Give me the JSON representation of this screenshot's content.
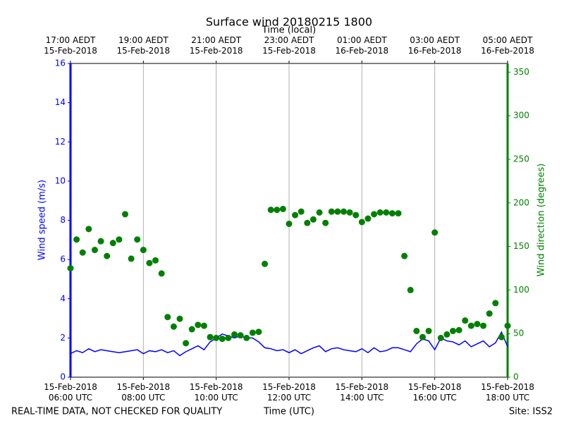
{
  "chart_data": {
    "type": "line",
    "title": "Surface wind 20180215 1800",
    "x2label": "Time (local)",
    "xlabel": "Time (UTC)",
    "ylabel": "Wind speed (m/s)",
    "y2label": "Wind direction (degrees)",
    "footer_left": "REAL-TIME DATA, NOT CHECKED FOR QUALITY",
    "footer_right": "Site: ISS2",
    "grid": "x",
    "x": [
      "2018-02-15T06:00",
      "2018-02-15T06:10",
      "2018-02-15T06:20",
      "2018-02-15T06:30",
      "2018-02-15T06:40",
      "2018-02-15T06:50",
      "2018-02-15T07:00",
      "2018-02-15T07:10",
      "2018-02-15T07:20",
      "2018-02-15T07:30",
      "2018-02-15T07:40",
      "2018-02-15T07:50",
      "2018-02-15T08:00",
      "2018-02-15T08:10",
      "2018-02-15T08:20",
      "2018-02-15T08:30",
      "2018-02-15T08:40",
      "2018-02-15T08:50",
      "2018-02-15T09:00",
      "2018-02-15T09:10",
      "2018-02-15T09:20",
      "2018-02-15T09:30",
      "2018-02-15T09:40",
      "2018-02-15T09:50",
      "2018-02-15T10:00",
      "2018-02-15T10:10",
      "2018-02-15T10:20",
      "2018-02-15T10:30",
      "2018-02-15T10:40",
      "2018-02-15T10:50",
      "2018-02-15T11:00",
      "2018-02-15T11:10",
      "2018-02-15T11:20",
      "2018-02-15T11:30",
      "2018-02-15T11:40",
      "2018-02-15T11:50",
      "2018-02-15T12:00",
      "2018-02-15T12:10",
      "2018-02-15T12:20",
      "2018-02-15T12:30",
      "2018-02-15T12:40",
      "2018-02-15T12:50",
      "2018-02-15T13:00",
      "2018-02-15T13:10",
      "2018-02-15T13:20",
      "2018-02-15T13:30",
      "2018-02-15T13:40",
      "2018-02-15T13:50",
      "2018-02-15T14:00",
      "2018-02-15T14:10",
      "2018-02-15T14:20",
      "2018-02-15T14:30",
      "2018-02-15T14:40",
      "2018-02-15T14:50",
      "2018-02-15T15:00",
      "2018-02-15T15:10",
      "2018-02-15T15:20",
      "2018-02-15T15:30",
      "2018-02-15T15:40",
      "2018-02-15T15:50",
      "2018-02-15T16:00",
      "2018-02-15T16:10",
      "2018-02-15T16:20",
      "2018-02-15T16:30",
      "2018-02-15T16:40",
      "2018-02-15T16:50",
      "2018-02-15T17:00",
      "2018-02-15T17:10",
      "2018-02-15T17:20",
      "2018-02-15T17:30",
      "2018-02-15T17:40",
      "2018-02-15T17:50",
      "2018-02-15T18:00"
    ],
    "series": [
      {
        "type": "line",
        "color": "#0000ff",
        "values": [
          1.2,
          1.35,
          1.25,
          1.45,
          1.3,
          1.4,
          1.35,
          1.3,
          1.25,
          1.3,
          1.35,
          1.4,
          1.2,
          1.35,
          1.3,
          1.4,
          1.25,
          1.35,
          1.1,
          1.3,
          1.45,
          1.6,
          1.4,
          1.8,
          2.0,
          2.2,
          2.1,
          2.0,
          2.1,
          2.0,
          2.0,
          1.8,
          1.5,
          1.45,
          1.35,
          1.4,
          1.25,
          1.4,
          1.2,
          1.35,
          1.5,
          1.6,
          1.3,
          1.45,
          1.5,
          1.4,
          1.35,
          1.3,
          1.45,
          1.25,
          1.5,
          1.3,
          1.35,
          1.5,
          1.5,
          1.4,
          1.3,
          1.7,
          1.95,
          1.85,
          1.4,
          2.0,
          1.85,
          1.8,
          1.65,
          1.85,
          1.55,
          1.7,
          1.85,
          1.55,
          1.75,
          2.3,
          1.55
        ]
      },
      {
        "type": "scatter",
        "axis": "y2",
        "color": "#008000",
        "values": [
          125,
          158,
          143,
          170,
          146,
          156,
          139,
          154,
          158,
          187,
          136,
          158,
          146,
          131,
          134,
          119,
          69,
          58,
          67,
          39,
          55,
          60,
          59,
          46,
          45,
          44,
          45,
          49,
          48,
          45,
          51,
          52,
          130,
          192,
          192,
          193,
          176,
          186,
          190,
          177,
          181,
          189,
          177,
          190,
          190,
          190,
          189,
          186,
          178,
          182,
          187,
          189,
          189,
          188,
          188,
          139,
          100,
          53,
          46,
          53,
          166,
          45,
          49,
          53,
          54,
          65,
          59,
          61,
          59,
          73,
          85,
          46,
          59
        ]
      }
    ],
    "xlim": [
      "2018-02-15T06:00",
      "2018-02-15T18:00"
    ],
    "xticks": [
      {
        "value": "2018-02-15T06:00",
        "label": "15-Feb-2018\n06:00 UTC"
      },
      {
        "value": "2018-02-15T08:00",
        "label": "15-Feb-2018\n08:00 UTC"
      },
      {
        "value": "2018-02-15T10:00",
        "label": "15-Feb-2018\n10:00 UTC"
      },
      {
        "value": "2018-02-15T12:00",
        "label": "15-Feb-2018\n12:00 UTC"
      },
      {
        "value": "2018-02-15T14:00",
        "label": "15-Feb-2018\n14:00 UTC"
      },
      {
        "value": "2018-02-15T16:00",
        "label": "15-Feb-2018\n16:00 UTC"
      },
      {
        "value": "2018-02-15T18:00",
        "label": "15-Feb-2018\n18:00 UTC"
      }
    ],
    "x2ticks": [
      {
        "value": "2018-02-15T06:00",
        "label": "17:00 AEDT\n15-Feb-2018"
      },
      {
        "value": "2018-02-15T08:00",
        "label": "19:00 AEDT\n15-Feb-2018"
      },
      {
        "value": "2018-02-15T10:00",
        "label": "21:00 AEDT\n15-Feb-2018"
      },
      {
        "value": "2018-02-15T12:00",
        "label": "23:00 AEDT\n15-Feb-2018"
      },
      {
        "value": "2018-02-15T14:00",
        "label": "01:00 AEDT\n16-Feb-2018"
      },
      {
        "value": "2018-02-15T16:00",
        "label": "03:00 AEDT\n16-Feb-2018"
      },
      {
        "value": "2018-02-15T18:00",
        "label": "05:00 AEDT\n16-Feb-2018"
      }
    ],
    "ylim": [
      0,
      16
    ],
    "yticks": [
      0,
      2,
      4,
      6,
      8,
      10,
      12,
      14,
      16
    ],
    "y2lim": [
      0,
      360
    ],
    "y2ticks": [
      0,
      50,
      100,
      150,
      200,
      250,
      300,
      350
    ]
  }
}
